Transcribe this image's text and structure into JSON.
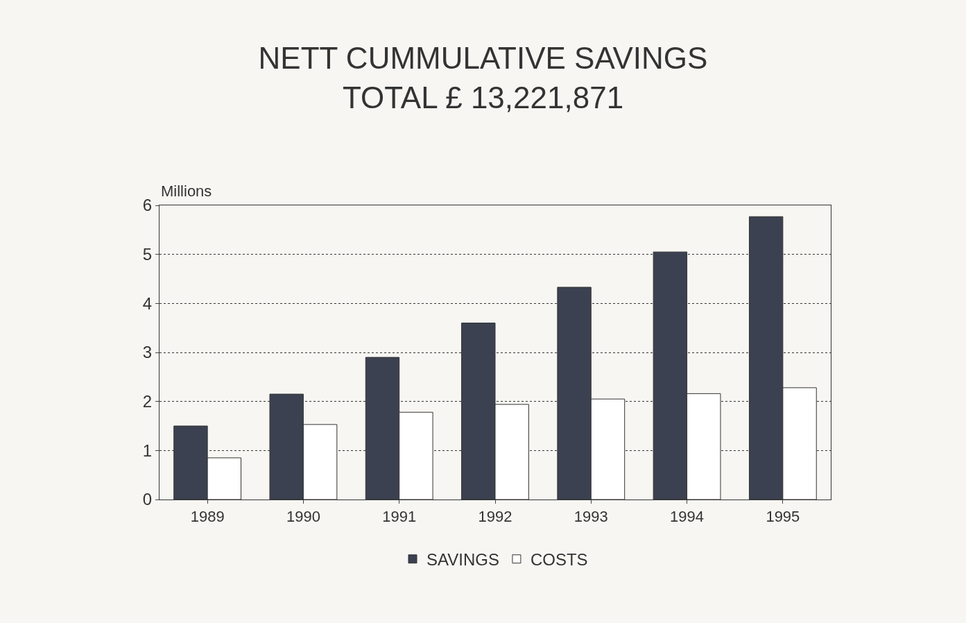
{
  "chart_data": {
    "type": "bar",
    "title": "NETT CUMMULATIVE SAVINGS",
    "subtitle": "TOTAL £ 13,221,871",
    "ylabel": "Millions",
    "categories": [
      "1989",
      "1990",
      "1991",
      "1992",
      "1993",
      "1994",
      "1995"
    ],
    "series": [
      {
        "name": "SAVINGS",
        "color": "#3b4150",
        "values": [
          1.5,
          2.15,
          2.9,
          3.6,
          4.33,
          5.05,
          5.77
        ]
      },
      {
        "name": "COSTS",
        "color": "#ffffff",
        "values": [
          0.85,
          1.53,
          1.78,
          1.94,
          2.05,
          2.16,
          2.28
        ]
      }
    ],
    "ylim": [
      0,
      6
    ],
    "yticks": [
      0,
      1,
      2,
      3,
      4,
      5,
      6
    ],
    "grid": "y",
    "legend": "bottom"
  }
}
